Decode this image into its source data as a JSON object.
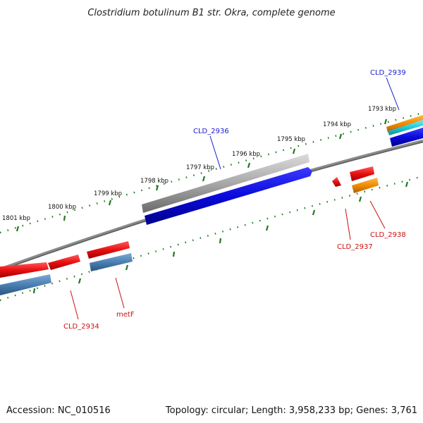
{
  "title": "Clostridium botulinum B1 str. Okra, complete genome",
  "footer": {
    "accession": "Accession: NC_010516",
    "summary": "Topology: circular; Length: 3,958,233 bp; Genes: 3,761"
  },
  "ruler_labels": [
    "1801 kbp",
    "1800 kbp",
    "1799 kbp",
    "1798 kbp",
    "1797 kbp",
    "1796 kbp",
    "1795 kbp",
    "1794 kbp",
    "1793 kbp"
  ],
  "gene_labels": {
    "CLD_2939": "CLD_2939",
    "CLD_2936": "CLD_2936",
    "CLD_2937": "CLD_2937",
    "CLD_2938": "CLD_2938",
    "CLD_2934": "CLD_2934",
    "metF": "metF"
  },
  "colors": {
    "backbone": "#7a7a7a",
    "tick": "#1e7a1e",
    "cds_blue": "#0a0adc",
    "cds_red": "#e81010",
    "cds_steel": "#4a7fb0",
    "cds_orange": "#f08c00",
    "cds_cyan": "#20c8d8",
    "cds_gray": "#a8a8a8",
    "label_blue": "#1a1acc",
    "label_red": "#cc1111"
  }
}
